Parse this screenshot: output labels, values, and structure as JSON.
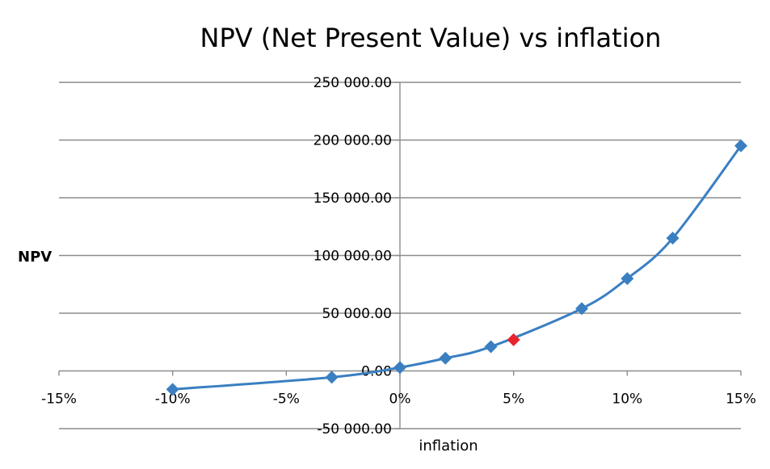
{
  "chart_data": {
    "type": "line",
    "title": "NPV (Net Present Value) vs inflation",
    "xlabel": "inflation",
    "ylabel": "NPV",
    "xlim": [
      -15,
      15
    ],
    "ylim": [
      -50000,
      250000
    ],
    "x_ticks": [
      "-15%",
      "-10%",
      "-5%",
      "0%",
      "5%",
      "10%",
      "15%"
    ],
    "x_tick_values": [
      -15,
      -10,
      -5,
      0,
      5,
      10,
      15
    ],
    "y_ticks": [
      "-50 000.00",
      "0.00",
      "50 000.00",
      "100 000.00",
      "150 000.00",
      "200 000.00",
      "250 000.00"
    ],
    "y_tick_values": [
      -50000,
      0,
      50000,
      100000,
      150000,
      200000,
      250000
    ],
    "grid": "horizontal",
    "series": [
      {
        "color": "#3a7fc2",
        "marker": "diamond",
        "x": [
          -10,
          -3,
          0,
          2,
          4,
          8,
          10,
          12,
          15
        ],
        "y": [
          -16000,
          -5500,
          3000,
          11000,
          21000,
          54000,
          80000,
          115000,
          195000
        ]
      }
    ],
    "highlight": {
      "x": 5,
      "y": 27000,
      "color": "#e8242c"
    }
  }
}
